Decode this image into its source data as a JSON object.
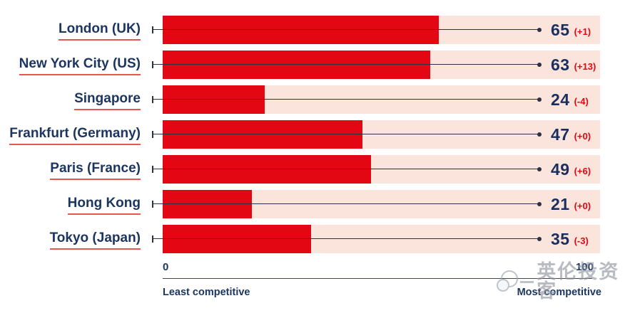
{
  "chart_data": {
    "type": "bar",
    "orientation": "horizontal",
    "title": "",
    "categories": [
      "London (UK)",
      "New York City (US)",
      "Singapore",
      "Frankfurt (Germany)",
      "Paris (France)",
      "Hong Kong",
      "Tokyo (Japan)"
    ],
    "values": [
      65,
      63,
      24,
      47,
      49,
      21,
      35
    ],
    "changes": [
      "(+1)",
      "(+13)",
      "(-4)",
      "(+0)",
      "(+6)",
      "(+0)",
      "(-3)"
    ],
    "xlim": [
      0,
      100
    ],
    "grid": false,
    "legend": false,
    "rows": [
      {
        "label": "London (UK)",
        "value": 65,
        "score": "65",
        "change": "(+1)"
      },
      {
        "label": "New York City (US)",
        "value": 63,
        "score": "63",
        "change": "(+13)"
      },
      {
        "label": "Singapore",
        "value": 24,
        "score": "24",
        "change": "(-4)"
      },
      {
        "label": "Frankfurt (Germany)",
        "value": 47,
        "score": "47",
        "change": "(+0)"
      },
      {
        "label": "Paris (France)",
        "value": 49,
        "score": "49",
        "change": "(+6)"
      },
      {
        "label": "Hong Kong",
        "value": 21,
        "score": "21",
        "change": "(+0)"
      },
      {
        "label": "Tokyo (Japan)",
        "value": 35,
        "score": "35",
        "change": "(-3)"
      }
    ],
    "axis": {
      "min_label": "0",
      "max_label": "100",
      "min_caption": "Least competitive",
      "max_caption": "Most competitive"
    },
    "colors": {
      "bar": "#e30613",
      "track": "#fbe4db",
      "label_text": "#1c3661",
      "score_text": "#1b2f5e",
      "change_text": "#e30613",
      "label_underline": "#e4584f",
      "connector": "#2e3146"
    }
  },
  "watermark": {
    "text": "英伦投资客"
  }
}
